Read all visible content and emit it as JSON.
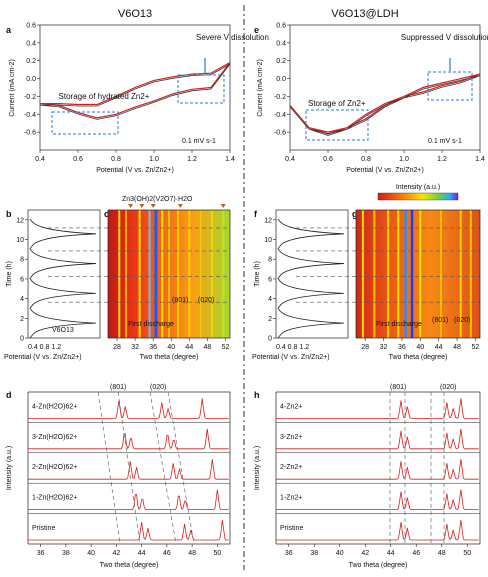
{
  "titles": {
    "left": "V6O13",
    "right": "V6O13@LDH"
  },
  "panels": [
    "a",
    "b",
    "c",
    "d",
    "e",
    "f",
    "g",
    "h"
  ],
  "panel_a": {
    "ylabel": "Current (mA cm-2)",
    "xlabel": "Potential (V vs. Zn/Zn2+)",
    "note1": "Storage of hydrated Zn2+",
    "note2": "Severe V dissolution",
    "rate": "0.1 mV s-1"
  },
  "panel_e": {
    "ylabel": "Current (mA cm-2)",
    "xlabel": "Potential (V vs. Zn/Zn2+)",
    "note1": "Storage of Zn2+",
    "note2": "Suppressed V dissolution",
    "rate": "0.1 mV s-1"
  },
  "panel_bc": {
    "b_ylabel": "Time (h)",
    "b_xlabel": "Potential (V vs. Zn/Zn2+)",
    "b_label": "V6O13",
    "c_xlabel": "Two theta (degree)",
    "c_title": "Zn3(OH)2(V2O7)·H2O",
    "first_discharge": "First discharge",
    "peak1": "(801)",
    "peak2": "(020)"
  },
  "panel_fg": {
    "f_ylabel": "Time (h)",
    "f_xlabel": "Potential (V vs. Zn/Zn2+)",
    "g_xlabel": "Two theta (degree)",
    "intensity": "Intensity (a.u.)",
    "first_discharge": "First discharge",
    "peak1": "(801)",
    "peak2": "(020)"
  },
  "panel_d": {
    "ylabel": "Intensity (a.u.)",
    "xlabel": "Two theta (degree)",
    "peak1": "(801)",
    "peak2": "(020)",
    "rows": [
      "4-Zn(H2O)62+",
      "3-Zn(H2O)62+",
      "2-Zn(H2O)62+",
      "1-Zn(H2O)62+",
      "Pristine"
    ]
  },
  "panel_h": {
    "ylabel": "Intensity (a.u.)",
    "xlabel": "Two theta (degree)",
    "peak1": "(801)",
    "peak2": "(020)",
    "rows": [
      "4-Zn2+",
      "3-Zn2+",
      "2-Zn2+",
      "1-Zn2+",
      "Pristine"
    ]
  },
  "chart_data": [
    {
      "type": "line",
      "id": "a",
      "xlim": [
        0.4,
        1.4
      ],
      "ylim": [
        -0.8,
        0.6
      ],
      "xticks": [
        "0.4",
        "0.6",
        "0.8",
        "1.0",
        "1.2",
        "1.4"
      ],
      "yticks": [
        "-0.6",
        "-0.4",
        "-0.2",
        "0.0",
        "0.2",
        "0.4",
        "0.6"
      ],
      "x": [
        0.4,
        0.5,
        0.6,
        0.7,
        0.8,
        0.9,
        1.0,
        1.05,
        1.1,
        1.2,
        1.3,
        1.4,
        1.3,
        1.2,
        1.1,
        1.0,
        0.9,
        0.8,
        0.7,
        0.6,
        0.5,
        0.4
      ],
      "y": [
        -0.28,
        -0.28,
        -0.29,
        -0.29,
        -0.2,
        -0.1,
        -0.02,
        0.0,
        0.02,
        0.05,
        0.06,
        0.18,
        -0.1,
        -0.12,
        -0.17,
        -0.25,
        -0.32,
        -0.4,
        -0.44,
        -0.38,
        -0.3,
        -0.28
      ]
    },
    {
      "type": "line",
      "id": "e",
      "xlim": [
        0.4,
        1.4
      ],
      "ylim": [
        -0.8,
        0.6
      ],
      "xticks": [
        "0.4",
        "0.6",
        "0.8",
        "1.0",
        "1.2",
        "1.4"
      ],
      "yticks": [
        "-0.6",
        "-0.4",
        "-0.2",
        "0.0",
        "0.2",
        "0.4",
        "0.6"
      ],
      "x": [
        0.4,
        0.5,
        0.6,
        0.7,
        0.8,
        0.9,
        1.0,
        1.1,
        1.2,
        1.3,
        1.4,
        1.3,
        1.2,
        1.1,
        1.0,
        0.9,
        0.8,
        0.7,
        0.6,
        0.5,
        0.4
      ],
      "y": [
        -0.3,
        -0.55,
        -0.6,
        -0.55,
        -0.4,
        -0.28,
        -0.2,
        -0.15,
        -0.08,
        -0.03,
        0.05,
        0.0,
        -0.05,
        -0.1,
        -0.2,
        -0.3,
        -0.45,
        -0.55,
        -0.62,
        -0.55,
        -0.3
      ]
    },
    {
      "type": "heatmap",
      "id": "c",
      "xlim": [
        26,
        53
      ],
      "ylim": [
        0,
        13
      ],
      "xticks": [
        "28",
        "32",
        "36",
        "40",
        "44",
        "48",
        "52"
      ],
      "yticks": [
        "0",
        "2",
        "4",
        "6",
        "8",
        "10",
        "12"
      ]
    },
    {
      "type": "heatmap",
      "id": "g",
      "xlim": [
        26,
        53
      ],
      "ylim": [
        0,
        13
      ],
      "xticks": [
        "28",
        "32",
        "36",
        "40",
        "44",
        "48",
        "52"
      ],
      "yticks": [
        "0",
        "2",
        "4",
        "6",
        "8",
        "10",
        "12"
      ]
    },
    {
      "type": "line",
      "id": "d",
      "xlim": [
        35,
        51
      ],
      "xticks": [
        "36",
        "38",
        "40",
        "42",
        "44",
        "46",
        "48",
        "50"
      ]
    },
    {
      "type": "line",
      "id": "h",
      "xlim": [
        35,
        51
      ],
      "xticks": [
        "36",
        "38",
        "40",
        "42",
        "44",
        "46",
        "48",
        "50"
      ]
    }
  ]
}
